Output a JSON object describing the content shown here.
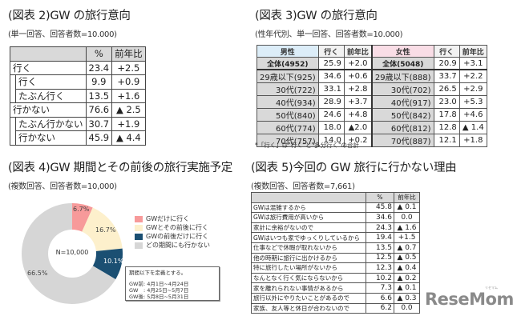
{
  "panel2": {
    "title": "(図表 2)GW の旅行意向",
    "subtitle": "(単一回答、回答者数=10.000)",
    "headers": [
      "",
      "%",
      "前年比"
    ],
    "rows": [
      {
        "label": "行く",
        "level": 0,
        "pct": "23.4",
        "diff": "+2.5"
      },
      {
        "label": "行く",
        "level": 1,
        "pct": "9.9",
        "diff": "+0.9"
      },
      {
        "label": "たぶん行く",
        "level": 1,
        "pct": "13.5",
        "diff": "+1.6"
      },
      {
        "label": "行かない",
        "level": 0,
        "pct": "76.6",
        "diff": "▲ 2.5"
      },
      {
        "label": "たぶん行かない",
        "level": 1,
        "pct": "30.7",
        "diff": "+1.9"
      },
      {
        "label": "行かない",
        "level": 1,
        "pct": "45.9",
        "diff": "▲ 4.4"
      }
    ]
  },
  "panel3": {
    "title": "(図表 3)GW の旅行意向",
    "subtitle": "(性年代別、単一回答、回答者数=10.000)",
    "male_header": "男性",
    "female_header": "女性",
    "col_go": "行く",
    "col_diff": "前年比",
    "rows": [
      {
        "m_label": "全体(4952)",
        "m_go": "25.9",
        "m_diff": "+2.0",
        "f_label": "全体(5048)",
        "f_go": "20.9",
        "f_diff": "+3.1"
      },
      {
        "m_label": "29歳以下(925)",
        "m_go": "34.6",
        "m_diff": "+0.6",
        "f_label": "29歳以下(888)",
        "f_go": "33.7",
        "f_diff": "+2.2"
      },
      {
        "m_label": "30代(722)",
        "m_go": "33.1",
        "m_diff": "+2.8",
        "f_label": "30代(702)",
        "f_go": "26.5",
        "f_diff": "+2.9"
      },
      {
        "m_label": "40代(934)",
        "m_go": "28.9",
        "m_diff": "+3.7",
        "f_label": "40代(917)",
        "f_go": "23.0",
        "f_diff": "+5.3"
      },
      {
        "m_label": "50代(840)",
        "m_go": "24.6",
        "m_diff": "+4.8",
        "f_label": "50代(842)",
        "f_go": "17.8",
        "f_diff": "+4.6"
      },
      {
        "m_label": "60代(774)",
        "m_go": "18.0",
        "m_diff": "▲2.0",
        "f_label": "60代(812)",
        "f_go": "12.8",
        "f_diff": "▲ 1.4"
      },
      {
        "m_label": "70代(757)",
        "m_go": "14.0",
        "m_diff": "+0.2",
        "f_label": "70代(887)",
        "f_go": "12.1",
        "f_diff": "+1.8"
      }
    ],
    "note": "*「行く」は\"行く\"と\"多分行く\"の合計"
  },
  "panel4": {
    "title": "(図表 4)GW 期間とその前後の旅行実施予定",
    "subtitle": "(複数回答、回答者数=10,000)",
    "center_label": "N=10,000",
    "definition": {
      "heading": "期間以下を定義とする。",
      "lines": [
        "GW前: 4月1日~4月24日",
        "GW　: 4月25日~5月7日",
        "GW後: 5月8日~5月31日"
      ]
    }
  },
  "panel5": {
    "title": "(図表 5)今回の GW 旅行に行かない理由",
    "subtitle": "(複数回答、回答者数=7,661)",
    "headers": [
      "",
      "%",
      "前年比"
    ],
    "rows": [
      {
        "reason": "GWは混雑するから",
        "pct": "45.8",
        "diff": "▲ 0.1"
      },
      {
        "reason": "GWは旅行費用が高いから",
        "pct": "34.6",
        "diff": "0.0"
      },
      {
        "reason": "家計に余裕がないので",
        "pct": "24.3",
        "diff": "▲ 1.6"
      },
      {
        "reason": "GWはいつも家でゆっくりしているから",
        "pct": "19.4",
        "diff": "+1.5"
      },
      {
        "reason": "仕事などで休暇が取れないから",
        "pct": "13.5",
        "diff": "▲ 0.7"
      },
      {
        "reason": "他の時期に旅行に出かけるから",
        "pct": "12.5",
        "diff": "▲ 0.5"
      },
      {
        "reason": "特に旅行したい場所がないから",
        "pct": "12.3",
        "diff": "▲ 0.4"
      },
      {
        "reason": "なんとなく行く気にならないから",
        "pct": "10.2",
        "diff": "▲ 0.2"
      },
      {
        "reason": "家を離れられない事情があるから",
        "pct": "7.3",
        "diff": "▲ 0.1"
      },
      {
        "reason": "旅行以外にやりたいことがあるので",
        "pct": "6.6",
        "diff": "▲ 0.3"
      },
      {
        "reason": "家族、友人等と休日が合わないので",
        "pct": "6.2",
        "diff": "0.0"
      }
    ]
  },
  "logo": {
    "text": "ReseMom",
    "ruby": "リセマム"
  },
  "chart_data": [
    {
      "type": "table",
      "title": "(図表 2)GW の旅行意向",
      "subtitle": "(単一回答、回答者数=10.000)",
      "columns": [
        "",
        "%",
        "前年比"
      ],
      "rows": [
        [
          "行く",
          23.4,
          "+2.5"
        ],
        [
          "行く",
          9.9,
          "+0.9"
        ],
        [
          "たぶん行く",
          13.5,
          "+1.6"
        ],
        [
          "行かない",
          76.6,
          "▲2.5"
        ],
        [
          "たぶん行かない",
          30.7,
          "+1.9"
        ],
        [
          "行かない",
          45.9,
          "▲4.4"
        ]
      ]
    },
    {
      "type": "table",
      "title": "(図表 3)GW の旅行意向",
      "subtitle": "(性年代別、単一回答、回答者数=10.000)",
      "columns": [
        "男性",
        "行く",
        "前年比",
        "女性",
        "行く",
        "前年比"
      ],
      "rows": [
        [
          "全体(4952)",
          25.9,
          "+2.0",
          "全体(5048)",
          20.9,
          "+3.1"
        ],
        [
          "29歳以下(925)",
          34.6,
          "+0.6",
          "29歳以下(888)",
          33.7,
          "+2.2"
        ],
        [
          "30代(722)",
          33.1,
          "+2.8",
          "30代(702)",
          26.5,
          "+2.9"
        ],
        [
          "40代(934)",
          28.9,
          "+3.7",
          "40代(917)",
          23.0,
          "+5.3"
        ],
        [
          "50代(840)",
          24.6,
          "+4.8",
          "50代(842)",
          17.8,
          "+4.6"
        ],
        [
          "60代(774)",
          18.0,
          "▲2.0",
          "60代(812)",
          12.8,
          "▲1.4"
        ],
        [
          "70代(757)",
          14.0,
          "+0.2",
          "70代(887)",
          12.1,
          "+1.8"
        ]
      ]
    },
    {
      "type": "pie",
      "title": "(図表 4)GW 期間とその前後の旅行実施予定",
      "subtitle": "(複数回答、回答者数=10,000)",
      "donut": true,
      "center_label": "N=10,000",
      "categories": [
        "GWだけに行く",
        "GWとその前後に行く",
        "GWの前後だけに行く",
        "どの期間にも行かない"
      ],
      "values": [
        6.7,
        16.7,
        10.1,
        66.5
      ],
      "labels": [
        "6.7%",
        "16.7%",
        "10.1%",
        "66.5%"
      ],
      "colors": [
        "#f79a9a",
        "#fdf0cc",
        "#1b4f72",
        "#d6d6d6"
      ],
      "legend_position": "right"
    },
    {
      "type": "table",
      "title": "(図表 5)今回の GW 旅行に行かない理由",
      "subtitle": "(複数回答、回答者数=7,661)",
      "columns": [
        "",
        "%",
        "前年比"
      ],
      "rows": [
        [
          "GWは混雑するから",
          45.8,
          "▲0.1"
        ],
        [
          "GWは旅行費用が高いから",
          34.6,
          "0.0"
        ],
        [
          "家計に余裕がないので",
          24.3,
          "▲1.6"
        ],
        [
          "GWはいつも家でゆっくりしているから",
          19.4,
          "+1.5"
        ],
        [
          "仕事などで休暇が取れないから",
          13.5,
          "▲0.7"
        ],
        [
          "他の時期に旅行に出かけるから",
          12.5,
          "▲0.5"
        ],
        [
          "特に旅行したい場所がないから",
          12.3,
          "▲0.4"
        ],
        [
          "なんとなく行く気にならないから",
          10.2,
          "▲0.2"
        ],
        [
          "家を離れられない事情があるから",
          7.3,
          "▲0.1"
        ],
        [
          "旅行以外にやりたいことがあるので",
          6.6,
          "▲0.3"
        ],
        [
          "家族、友人等と休日が合わないので",
          6.2,
          "0.0"
        ]
      ]
    }
  ]
}
